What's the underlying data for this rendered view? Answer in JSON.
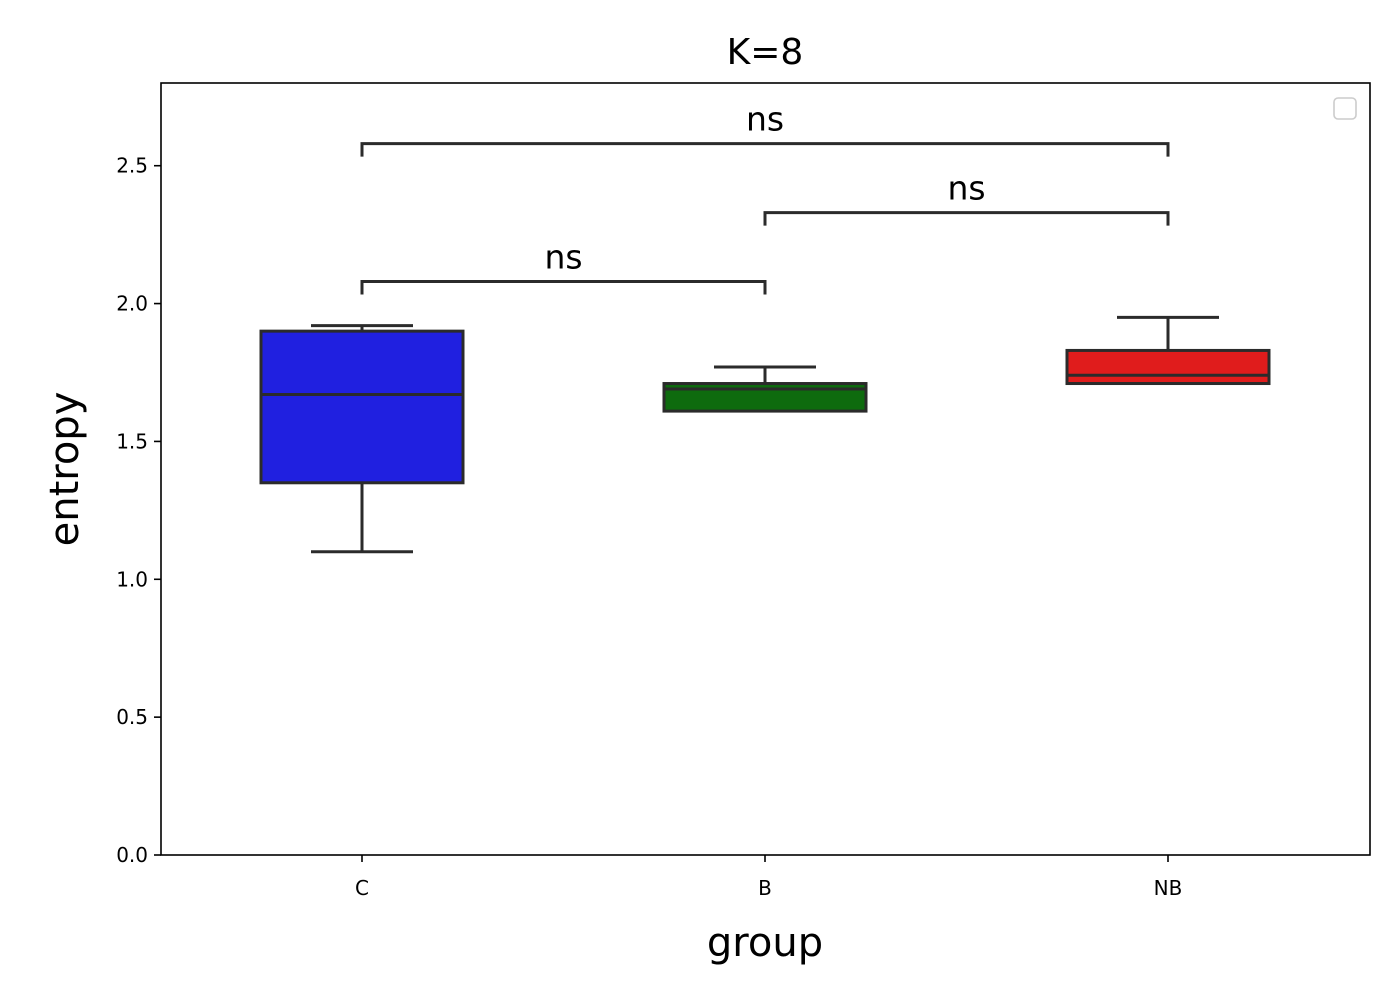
{
  "chart_data": {
    "type": "box",
    "title": "K=8",
    "xlabel": "group",
    "ylabel": "entropy",
    "categories": [
      "C",
      "B",
      "NB"
    ],
    "ylim": [
      0,
      2.8
    ],
    "yticks": [
      "0.0",
      "0.5",
      "1.0",
      "1.5",
      "2.0",
      "2.5"
    ],
    "ytick_values": [
      0.0,
      0.5,
      1.0,
      1.5,
      2.0,
      2.5
    ],
    "boxes": [
      {
        "category": "C",
        "whisker_low": 1.1,
        "q1": 1.35,
        "median": 1.67,
        "q3": 1.9,
        "whisker_high": 1.92,
        "color": "#2020e0"
      },
      {
        "category": "B",
        "whisker_low": 1.61,
        "q1": 1.61,
        "median": 1.69,
        "q3": 1.71,
        "whisker_high": 1.77,
        "color": "#0e6b0e"
      },
      {
        "category": "NB",
        "whisker_low": 1.71,
        "q1": 1.71,
        "median": 1.74,
        "q3": 1.83,
        "whisker_high": 1.95,
        "color": "#e01c1c"
      }
    ],
    "annotations": [
      {
        "from": "C",
        "to": "B",
        "y": 2.08,
        "label": "ns"
      },
      {
        "from": "B",
        "to": "NB",
        "y": 2.33,
        "label": "ns"
      },
      {
        "from": "C",
        "to": "NB",
        "y": 2.58,
        "label": "ns"
      }
    ],
    "legend": "top-right",
    "grid": false,
    "line_color": "#2b2b2b"
  }
}
